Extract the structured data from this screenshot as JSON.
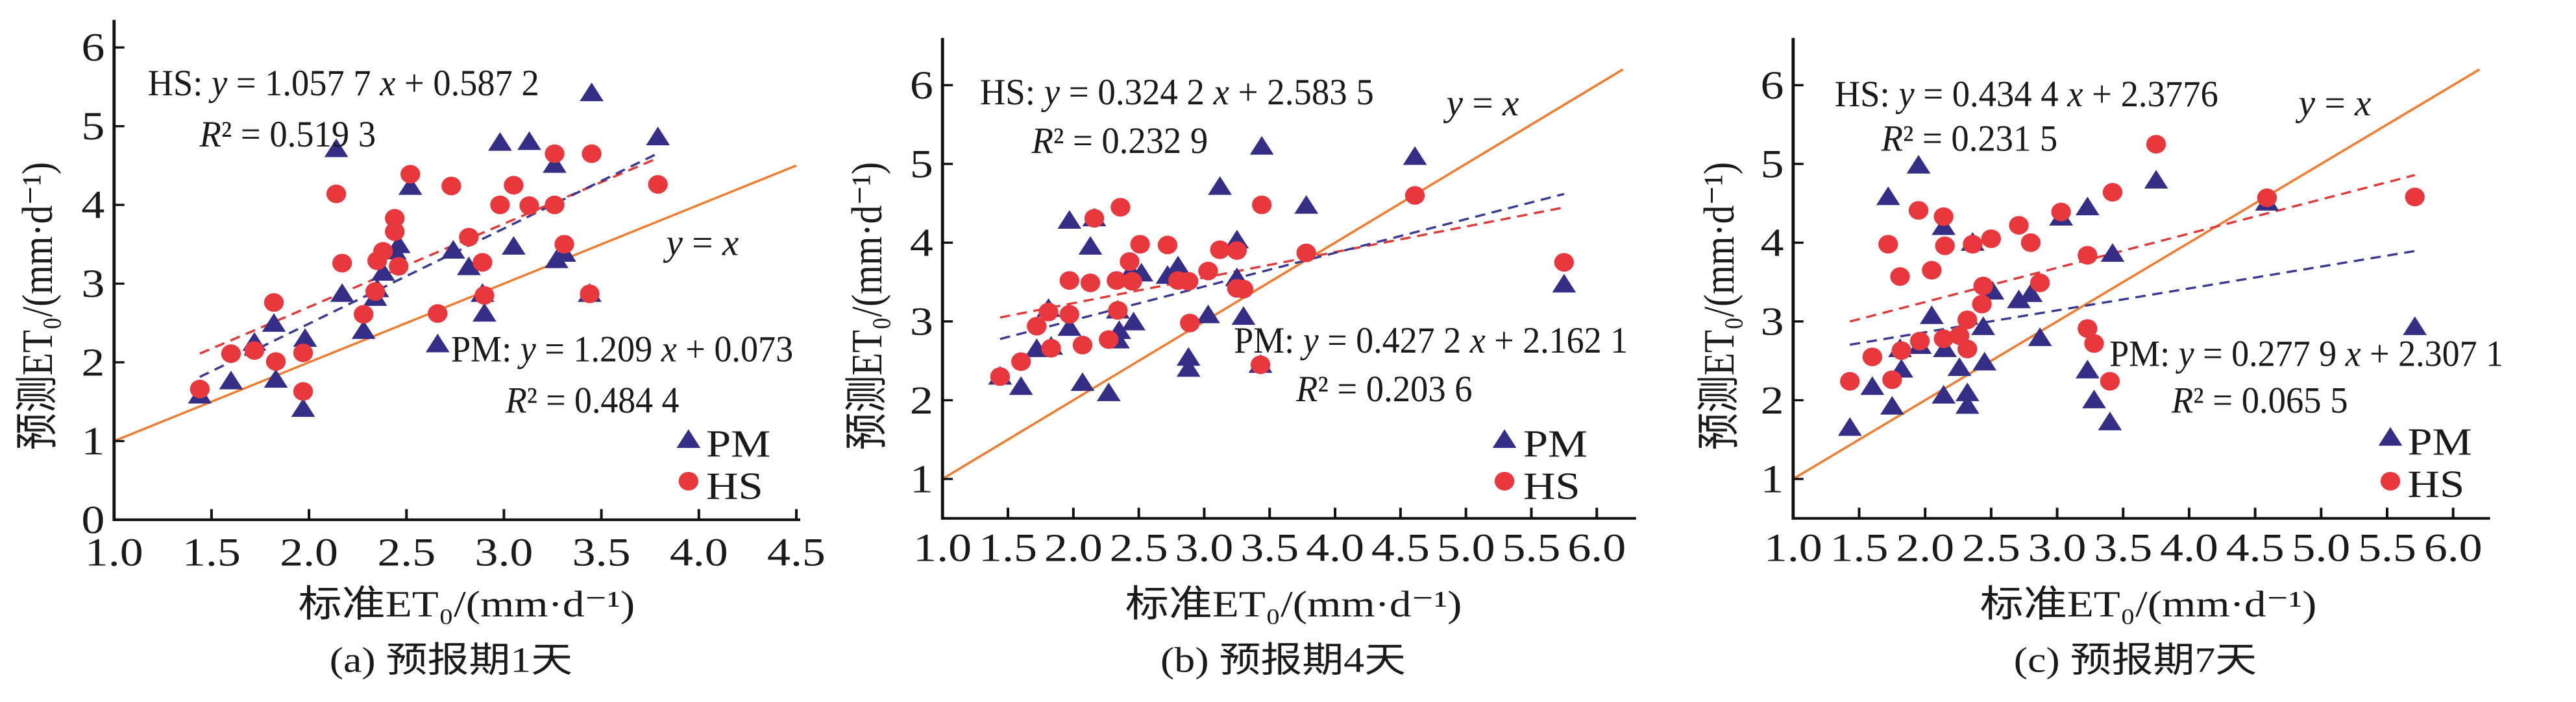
{
  "chart_data": [
    {
      "panel_id": "a",
      "type": "scatter",
      "caption": "(a) 预报期1天",
      "xlabel": "标准ET₀/(mm·d⁻¹)",
      "ylabel": "预测ET₀/(mm·d⁻¹)",
      "xlim": [
        1.0,
        4.52
      ],
      "ylim": [
        0,
        6.35
      ],
      "xticks": [
        "1.0",
        "1.5",
        "2.0",
        "2.5",
        "3.0",
        "3.5",
        "4.0",
        "4.5"
      ],
      "yticks": [
        "0",
        "1",
        "2",
        "3",
        "4",
        "5",
        "6"
      ],
      "grid": false,
      "legend": {
        "position": "lower-right"
      },
      "reference_line": {
        "label": "y = x",
        "x_range": [
          1.0,
          4.5
        ]
      },
      "series": [
        {
          "name": "PM",
          "marker": "triangle",
          "color": "#342e86",
          "points": [
            [
              1.44,
              1.59
            ],
            [
              1.6,
              1.77
            ],
            [
              1.72,
              2.26
            ],
            [
              1.82,
              2.5
            ],
            [
              1.83,
              1.79
            ],
            [
              1.98,
              2.31
            ],
            [
              1.97,
              1.42
            ],
            [
              2.14,
              4.72
            ],
            [
              2.17,
              2.88
            ],
            [
              2.28,
              2.41
            ],
            [
              2.34,
              2.83
            ],
            [
              2.35,
              2.94
            ],
            [
              2.38,
              3.15
            ],
            [
              2.44,
              3.42
            ],
            [
              2.46,
              3.5
            ],
            [
              2.52,
              4.24
            ],
            [
              2.66,
              2.24
            ],
            [
              2.74,
              3.43
            ],
            [
              2.82,
              3.22
            ],
            [
              2.89,
              2.88
            ],
            [
              2.9,
              2.63
            ],
            [
              2.98,
              4.8
            ],
            [
              3.05,
              3.48
            ],
            [
              3.13,
              4.81
            ],
            [
              3.26,
              4.52
            ],
            [
              3.27,
              3.31
            ],
            [
              3.31,
              3.39
            ],
            [
              3.44,
              2.88
            ],
            [
              3.45,
              5.43
            ],
            [
              3.79,
              4.87
            ]
          ]
        },
        {
          "name": "HS",
          "marker": "circle",
          "color": "#e8383d",
          "points": [
            [
              1.44,
              1.66
            ],
            [
              1.6,
              2.11
            ],
            [
              1.72,
              2.15
            ],
            [
              1.82,
              2.76
            ],
            [
              1.83,
              2.01
            ],
            [
              1.97,
              2.12
            ],
            [
              1.97,
              1.63
            ],
            [
              2.14,
              4.14
            ],
            [
              2.17,
              3.26
            ],
            [
              2.28,
              2.61
            ],
            [
              2.34,
              2.9
            ],
            [
              2.35,
              3.29
            ],
            [
              2.38,
              3.41
            ],
            [
              2.44,
              3.83
            ],
            [
              2.44,
              3.66
            ],
            [
              2.46,
              3.22
            ],
            [
              2.52,
              4.39
            ],
            [
              2.66,
              2.62
            ],
            [
              2.73,
              4.24
            ],
            [
              2.82,
              3.59
            ],
            [
              2.89,
              3.27
            ],
            [
              2.9,
              2.85
            ],
            [
              2.98,
              4.0
            ],
            [
              3.05,
              4.25
            ],
            [
              3.13,
              3.99
            ],
            [
              3.26,
              4.65
            ],
            [
              3.26,
              4.0
            ],
            [
              3.31,
              3.5
            ],
            [
              3.44,
              2.87
            ],
            [
              3.45,
              4.65
            ],
            [
              3.79,
              4.26
            ]
          ]
        }
      ],
      "fits": [
        {
          "name": "HS",
          "slope": 1.0577,
          "intercept": 0.5872,
          "r2": 0.5193,
          "x_range": [
            1.44,
            3.79
          ],
          "color": "#e03a3a",
          "equation": "HS: y = 1.057 7 x + 0.587 2",
          "r2_label": "R² = 0.519 3"
        },
        {
          "name": "PM",
          "slope": 1.209,
          "intercept": 0.073,
          "r2": 0.4844,
          "x_range": [
            1.44,
            3.79
          ],
          "color": "#3a3a92",
          "equation": "PM: y = 1.209 x + 0.073",
          "r2_label": "R² = 0.484 4"
        }
      ]
    },
    {
      "panel_id": "b",
      "type": "scatter",
      "caption": "(b) 预报期4天",
      "xlabel": "标准ET₀/(mm·d⁻¹)",
      "ylabel": "预测ET₀/(mm·d⁻¹)",
      "xlim": [
        1.0,
        6.3
      ],
      "ylim": [
        0.5,
        6.6
      ],
      "xticks": [
        "1.0",
        "1.5",
        "2.0",
        "2.5",
        "3.0",
        "3.5",
        "4.0",
        "4.5",
        "5.0",
        "5.5",
        "6.0"
      ],
      "yticks": [
        "1",
        "2",
        "3",
        "4",
        "5",
        "6"
      ],
      "grid": false,
      "legend": {
        "position": "lower-right"
      },
      "reference_line": {
        "label": "y = x",
        "x_range": [
          1.0,
          6.2
        ]
      },
      "series": [
        {
          "name": "PM",
          "marker": "triangle",
          "color": "#342e86",
          "points": [
            [
              1.44,
              2.31
            ],
            [
              1.6,
              2.18
            ],
            [
              1.72,
              2.66
            ],
            [
              1.81,
              3.17
            ],
            [
              1.83,
              2.69
            ],
            [
              1.97,
              2.93
            ],
            [
              1.97,
              4.29
            ],
            [
              2.07,
              2.23
            ],
            [
              2.13,
              3.96
            ],
            [
              2.16,
              4.32
            ],
            [
              2.27,
              2.1
            ],
            [
              2.34,
              2.77
            ],
            [
              2.35,
              2.89
            ],
            [
              2.34,
              3.15
            ],
            [
              2.44,
              3.64
            ],
            [
              2.46,
              3.0
            ],
            [
              2.52,
              3.62
            ],
            [
              2.72,
              3.59
            ],
            [
              2.8,
              3.71
            ],
            [
              2.88,
              2.55
            ],
            [
              2.88,
              2.41
            ],
            [
              3.03,
              3.09
            ],
            [
              3.12,
              4.72
            ],
            [
              3.25,
              4.04
            ],
            [
              3.25,
              3.56
            ],
            [
              3.3,
              3.07
            ],
            [
              3.44,
              5.23
            ],
            [
              3.43,
              2.46
            ],
            [
              3.78,
              4.48
            ],
            [
              4.61,
              5.1
            ],
            [
              5.75,
              3.48
            ]
          ]
        },
        {
          "name": "HS",
          "marker": "circle",
          "color": "#e8383d",
          "points": [
            [
              1.44,
              2.3
            ],
            [
              1.6,
              2.49
            ],
            [
              1.72,
              2.94
            ],
            [
              1.81,
              3.12
            ],
            [
              1.83,
              2.66
            ],
            [
              1.97,
              3.52
            ],
            [
              1.97,
              3.09
            ],
            [
              2.07,
              2.7
            ],
            [
              2.13,
              3.49
            ],
            [
              2.16,
              4.31
            ],
            [
              2.27,
              2.77
            ],
            [
              2.33,
              3.52
            ],
            [
              2.34,
              3.14
            ],
            [
              2.36,
              4.45
            ],
            [
              2.43,
              3.76
            ],
            [
              2.45,
              3.51
            ],
            [
              2.51,
              3.98
            ],
            [
              2.72,
              3.97
            ],
            [
              2.8,
              3.52
            ],
            [
              2.88,
              3.51
            ],
            [
              2.89,
              2.98
            ],
            [
              3.03,
              3.64
            ],
            [
              3.12,
              3.91
            ],
            [
              3.25,
              3.9
            ],
            [
              3.25,
              3.42
            ],
            [
              3.3,
              3.41
            ],
            [
              3.44,
              4.48
            ],
            [
              3.43,
              2.45
            ],
            [
              3.78,
              3.87
            ],
            [
              4.61,
              4.6
            ],
            [
              5.75,
              3.75
            ]
          ]
        }
      ],
      "fits": [
        {
          "name": "HS",
          "slope": 0.3242,
          "intercept": 2.5835,
          "r2": 0.2329,
          "x_range": [
            1.44,
            5.75
          ],
          "color": "#e03a3a",
          "equation": "HS: y = 0.324 2 x + 2.583 5",
          "r2_label": "R² = 0.232 9"
        },
        {
          "name": "PM",
          "slope": 0.4272,
          "intercept": 2.1621,
          "r2": 0.2036,
          "x_range": [
            1.44,
            5.75
          ],
          "color": "#3a3a92",
          "equation": "PM: y = 0.427 2 x + 2.162 1",
          "r2_label": "R² = 0.203 6"
        }
      ]
    },
    {
      "panel_id": "c",
      "type": "scatter",
      "caption": "(c) 预报期7天",
      "xlabel": "标准ET₀/(mm·d⁻¹)",
      "ylabel": "预测ET₀/(mm·d⁻¹)",
      "xlim": [
        1.0,
        6.28
      ],
      "ylim": [
        0.5,
        6.6
      ],
      "xticks": [
        "1.0",
        "1.5",
        "2.0",
        "2.5",
        "3.0",
        "3.5",
        "4.0",
        "4.5",
        "5.0",
        "5.5",
        "6.0"
      ],
      "yticks": [
        "1",
        "2",
        "3",
        "4",
        "5",
        "6"
      ],
      "grid": false,
      "legend": {
        "position": "lower-right"
      },
      "reference_line": {
        "label": "y = x",
        "x_range": [
          1.0,
          6.2
        ]
      },
      "series": [
        {
          "name": "PM",
          "marker": "triangle",
          "color": "#342e86",
          "points": [
            [
              1.43,
              1.66
            ],
            [
              1.6,
              2.18
            ],
            [
              1.72,
              4.59
            ],
            [
              1.75,
              1.93
            ],
            [
              1.82,
              2.4
            ],
            [
              1.81,
              2.66
            ],
            [
              1.95,
              4.99
            ],
            [
              1.96,
              2.7
            ],
            [
              2.05,
              3.08
            ],
            [
              2.14,
              2.07
            ],
            [
              2.14,
              4.21
            ],
            [
              2.15,
              2.66
            ],
            [
              2.26,
              2.42
            ],
            [
              2.32,
              2.1
            ],
            [
              2.32,
              1.94
            ],
            [
              2.36,
              4.01
            ],
            [
              2.44,
              2.94
            ],
            [
              2.45,
              2.49
            ],
            [
              2.51,
              3.39
            ],
            [
              2.71,
              3.28
            ],
            [
              2.8,
              3.36
            ],
            [
              2.87,
              2.8
            ],
            [
              3.03,
              4.33
            ],
            [
              3.23,
              4.46
            ],
            [
              3.23,
              2.39
            ],
            [
              3.28,
              2.01
            ],
            [
              3.42,
              3.87
            ],
            [
              3.4,
              1.73
            ],
            [
              3.75,
              4.8
            ],
            [
              4.59,
              4.52
            ],
            [
              5.71,
              2.94
            ]
          ]
        },
        {
          "name": "HS",
          "marker": "circle",
          "color": "#e8383d",
          "points": [
            [
              1.43,
              2.24
            ],
            [
              1.6,
              2.55
            ],
            [
              1.72,
              3.98
            ],
            [
              1.75,
              2.26
            ],
            [
              1.82,
              2.63
            ],
            [
              1.81,
              3.57
            ],
            [
              1.95,
              4.41
            ],
            [
              1.96,
              2.75
            ],
            [
              2.05,
              3.65
            ],
            [
              2.14,
              4.33
            ],
            [
              2.15,
              3.96
            ],
            [
              2.14,
              2.78
            ],
            [
              2.26,
              2.82
            ],
            [
              2.32,
              3.02
            ],
            [
              2.32,
              2.65
            ],
            [
              2.36,
              3.98
            ],
            [
              2.44,
              3.45
            ],
            [
              2.43,
              3.22
            ],
            [
              2.5,
              4.05
            ],
            [
              2.71,
              4.22
            ],
            [
              2.8,
              4.0
            ],
            [
              2.87,
              3.49
            ],
            [
              3.03,
              4.39
            ],
            [
              3.23,
              3.84
            ],
            [
              3.23,
              2.91
            ],
            [
              3.28,
              2.72
            ],
            [
              3.42,
              4.64
            ],
            [
              3.4,
              2.24
            ],
            [
              3.75,
              5.25
            ],
            [
              4.59,
              4.57
            ],
            [
              5.71,
              4.58
            ]
          ]
        }
      ],
      "fits": [
        {
          "name": "HS",
          "slope": 0.4344,
          "intercept": 2.3776,
          "r2": 0.2315,
          "x_range": [
            1.43,
            5.71
          ],
          "color": "#e03a3a",
          "equation": "HS: y = 0.434 4 x + 2.3776",
          "r2_label": "R² = 0.231 5"
        },
        {
          "name": "PM",
          "slope": 0.2779,
          "intercept": 2.3071,
          "r2": 0.0655,
          "x_range": [
            1.43,
            5.71
          ],
          "color": "#3a3a92",
          "equation": "PM: y = 0.277 9 x + 2.307 1",
          "r2_label": "R² = 0.065 5"
        }
      ]
    }
  ],
  "colors": {
    "reference_line": "#ee7d31",
    "axis": "#111111"
  }
}
